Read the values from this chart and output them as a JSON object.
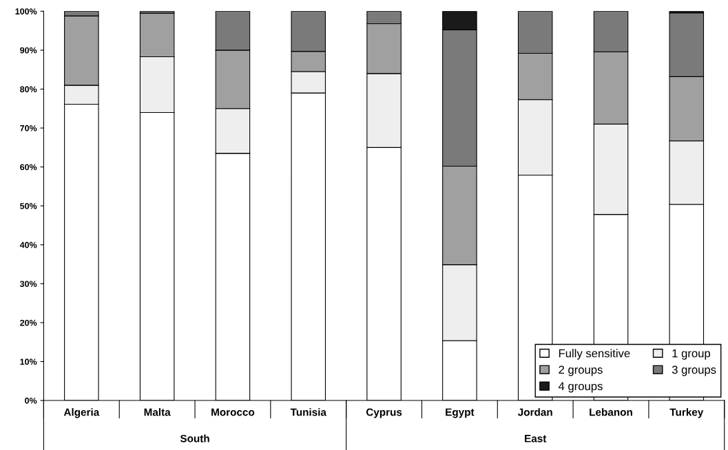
{
  "chart_data": {
    "type": "bar",
    "stacked": true,
    "categories": [
      "Algeria",
      "Malta",
      "Morocco",
      "Tunisia",
      "Cyprus",
      "Egypt",
      "Jordan",
      "Lebanon",
      "Turkey"
    ],
    "series": [
      {
        "name": "Fully sensitive",
        "color": "#ffffff",
        "values": [
          76.1,
          74.0,
          63.5,
          79.0,
          65.0,
          15.4,
          57.9,
          47.8,
          50.4
        ]
      },
      {
        "name": "1 group",
        "color": "#eeeeee",
        "values": [
          4.9,
          14.3,
          11.5,
          5.5,
          19.0,
          19.5,
          19.4,
          23.2,
          16.3
        ]
      },
      {
        "name": "2 groups",
        "color": "#a0a0a0",
        "values": [
          17.8,
          11.2,
          15.0,
          5.2,
          12.8,
          25.3,
          11.9,
          18.6,
          16.5
        ]
      },
      {
        "name": "3 groups",
        "color": "#7a7a7a",
        "values": [
          1.2,
          0.5,
          10.0,
          10.3,
          3.2,
          35.0,
          10.8,
          10.4,
          16.4
        ]
      },
      {
        "name": "4 groups",
        "color": "#1a1a1a",
        "values": [
          0,
          0,
          0,
          0,
          0,
          4.8,
          0,
          0,
          0.4
        ]
      }
    ],
    "ylim": [
      0,
      100
    ],
    "yticks": [
      {
        "value": 0,
        "label": "0%"
      },
      {
        "value": 10,
        "label": "10%"
      },
      {
        "value": 20,
        "label": "20%"
      },
      {
        "value": 30,
        "label": "30%"
      },
      {
        "value": 40,
        "label": "40%"
      },
      {
        "value": 50,
        "label": "50%"
      },
      {
        "value": 60,
        "label": "60%"
      },
      {
        "value": 70,
        "label": "70%"
      },
      {
        "value": 80,
        "label": "80%"
      },
      {
        "value": 90,
        "label": "90%"
      },
      {
        "value": 100,
        "label": "100%"
      }
    ],
    "annotations": [
      "South",
      "East"
    ],
    "legend": "bottom right",
    "grid": false
  }
}
